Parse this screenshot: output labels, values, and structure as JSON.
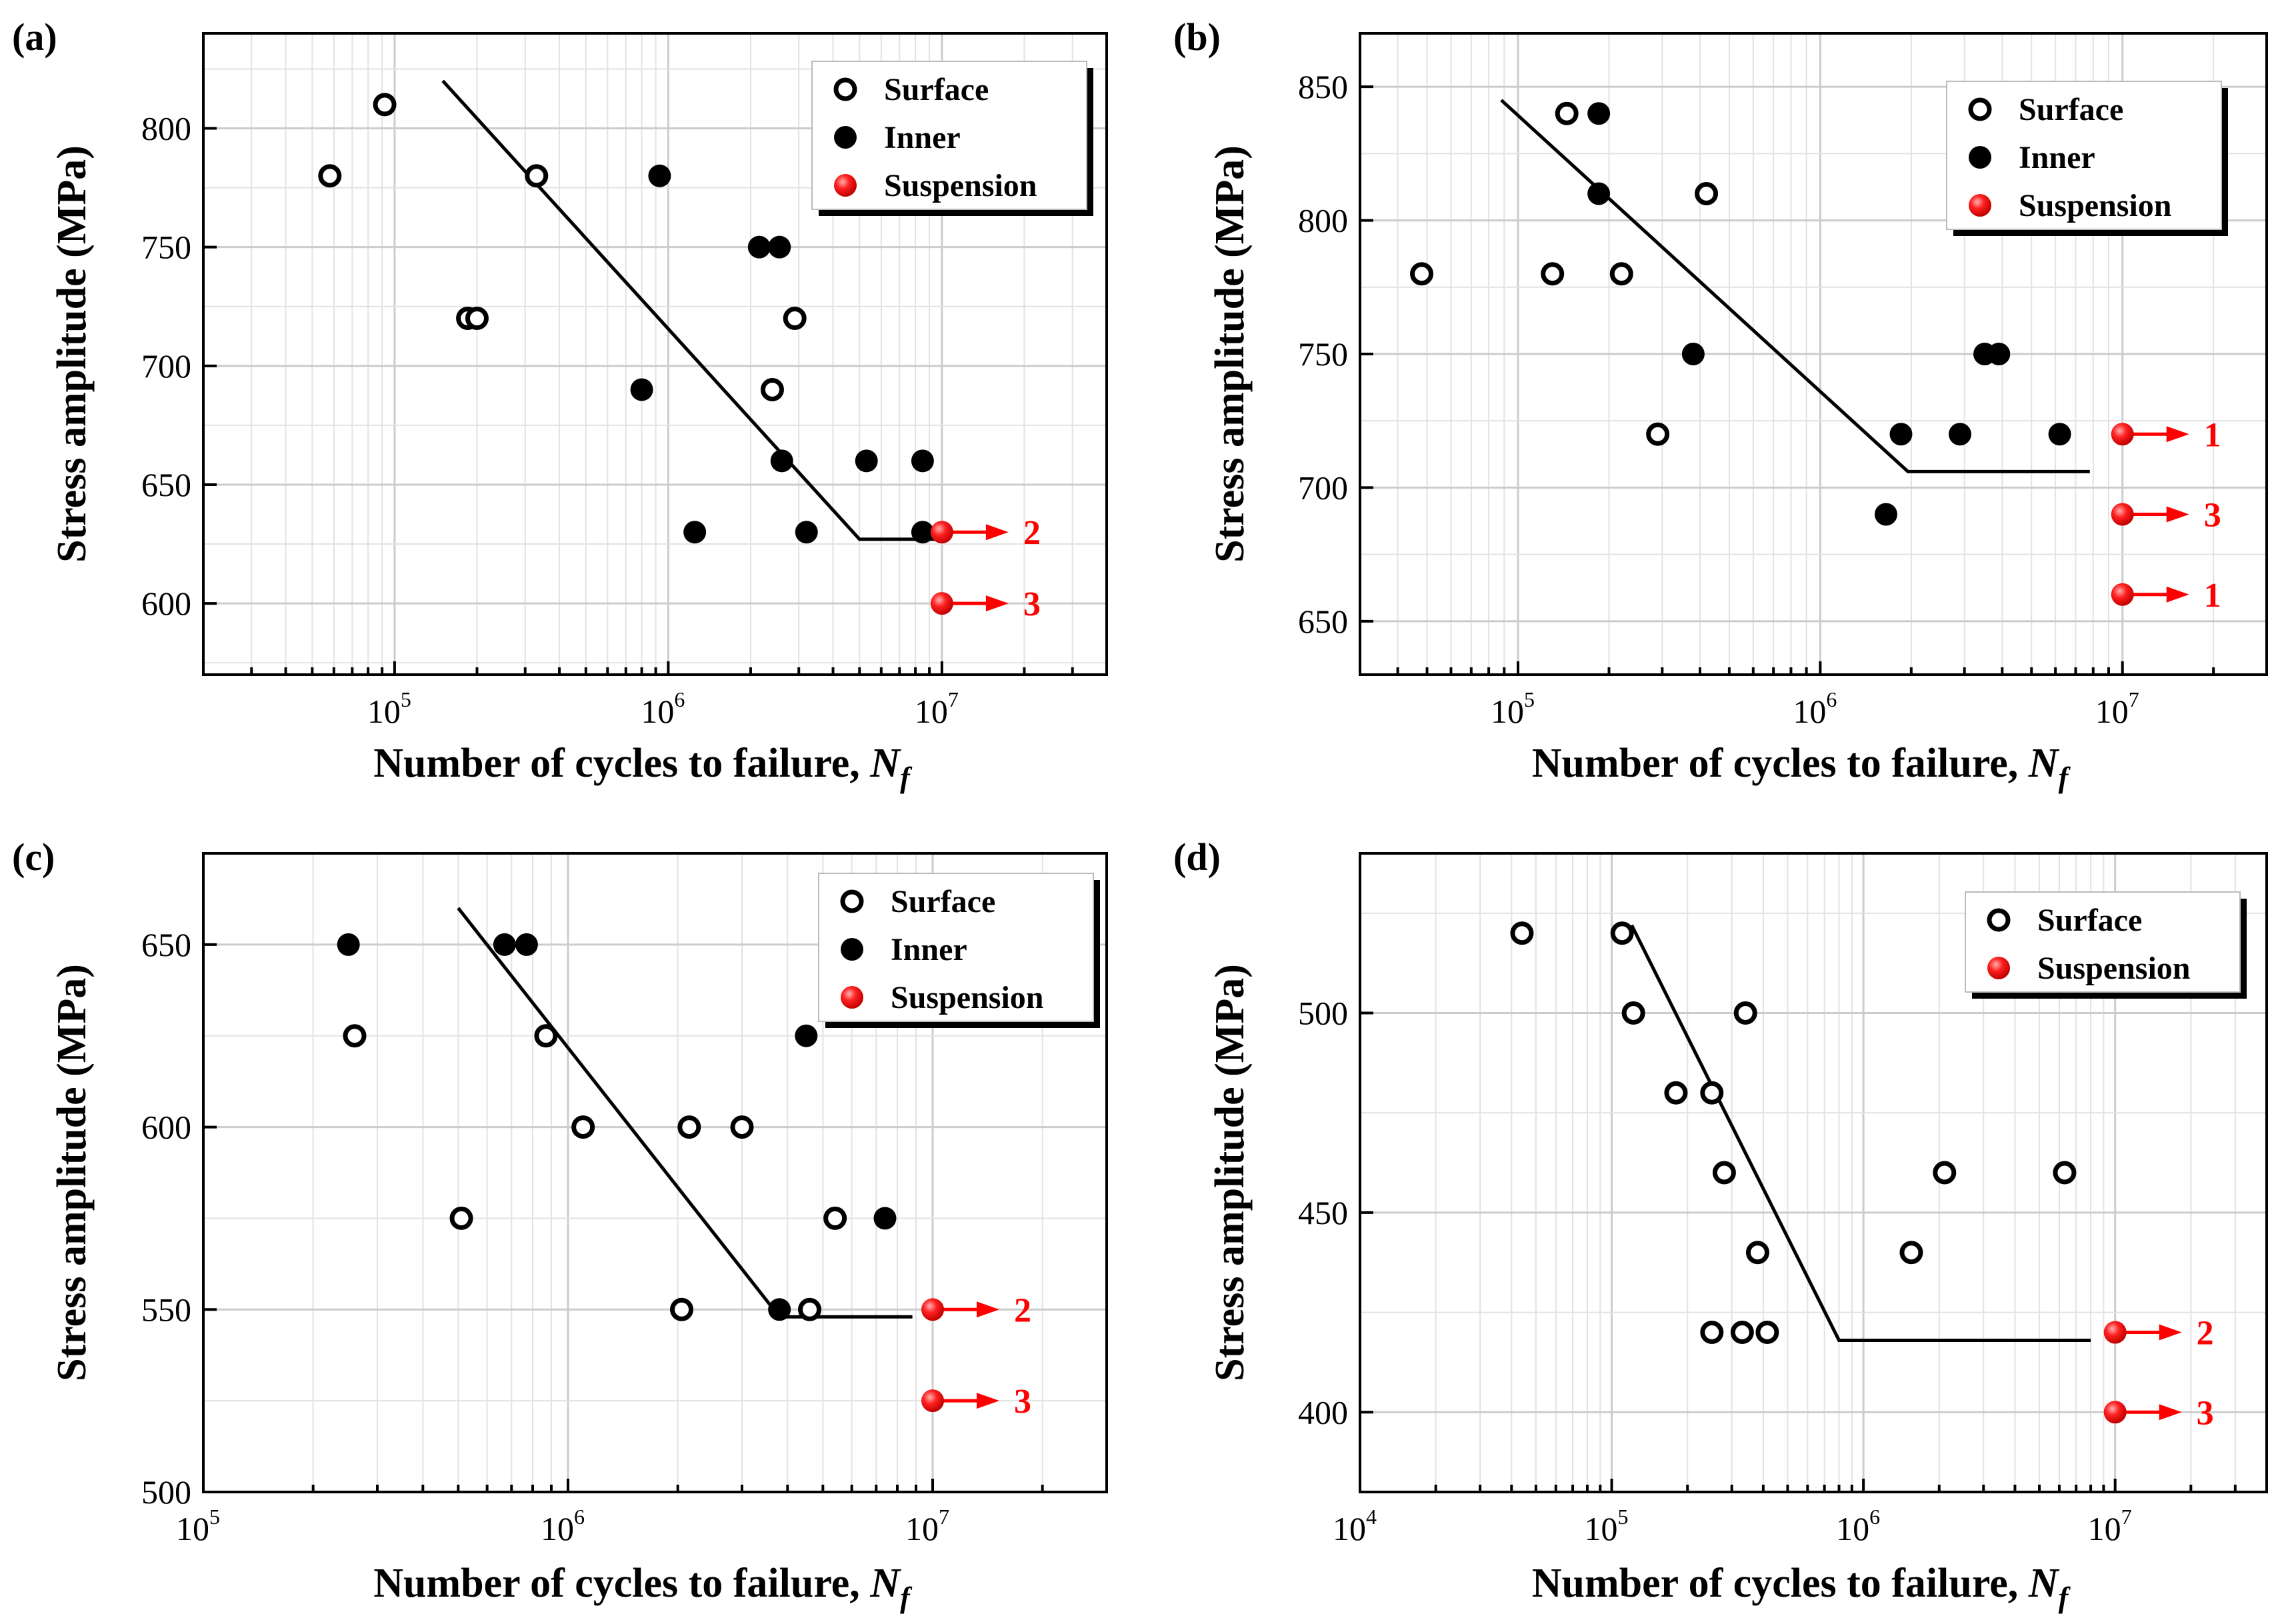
{
  "colors": {
    "axis": "#000000",
    "grid": "#cccccc",
    "minor_grid": "#e2e2e2",
    "suspension": "#ff0000",
    "legend_shadow": "#000000"
  },
  "chart_data": [
    {
      "type": "scatter",
      "label": "(a)",
      "xlabel": "Number of cycles to failure, ",
      "xlabel_italic": "N",
      "xlabel_sub": "f",
      "ylabel": "Stress amplitude (MPa)",
      "xscale": "log",
      "xlim": [
        20000,
        40000000
      ],
      "ylim": [
        570,
        840
      ],
      "xticks": [
        {
          "value": 100000,
          "base": "10",
          "exp": "5"
        },
        {
          "value": 1000000,
          "base": "10",
          "exp": "6"
        },
        {
          "value": 10000000,
          "base": "10",
          "exp": "7"
        }
      ],
      "yticks": [
        600,
        650,
        700,
        750,
        800
      ],
      "grid": true,
      "legend_position": "top-right",
      "legend": [
        {
          "label": "Surface",
          "marker": "open"
        },
        {
          "label": "Inner",
          "marker": "filled"
        },
        {
          "label": "Suspension",
          "marker": "red"
        }
      ],
      "series": [
        {
          "name": "Surface",
          "marker": "open",
          "points": [
            [
              58000,
              780
            ],
            [
              92000,
              810
            ],
            [
              185000,
              720
            ],
            [
              200000,
              720
            ],
            [
              330000,
              780
            ],
            [
              2400000,
              690
            ],
            [
              2900000,
              720
            ]
          ]
        },
        {
          "name": "Inner",
          "marker": "filled",
          "points": [
            [
              800000,
              690
            ],
            [
              930000,
              780
            ],
            [
              1250000,
              630
            ],
            [
              2150000,
              750
            ],
            [
              2550000,
              750
            ],
            [
              2600000,
              660
            ],
            [
              3200000,
              630
            ],
            [
              5300000,
              660
            ],
            [
              8500000,
              660
            ],
            [
              8500000,
              630
            ]
          ]
        },
        {
          "name": "Suspension",
          "marker": "red",
          "points": [
            [
              10000000,
              630
            ],
            [
              10000000,
              600
            ]
          ]
        }
      ],
      "fit_line": [
        [
          150000,
          820
        ],
        [
          5000000,
          627
        ],
        [
          10000000,
          627
        ]
      ],
      "annotations": [
        {
          "x": 10000000,
          "y": 630,
          "text": "2"
        },
        {
          "x": 10000000,
          "y": 600,
          "text": "3"
        }
      ]
    },
    {
      "type": "scatter",
      "label": "(b)",
      "xlabel": "Number of cycles to failure, ",
      "xlabel_italic": "N",
      "xlabel_sub": "f",
      "ylabel": "Stress amplitude (MPa)",
      "xscale": "log",
      "xlim": [
        30000,
        30000000
      ],
      "ylim": [
        630,
        870
      ],
      "xticks": [
        {
          "value": 100000,
          "base": "10",
          "exp": "5"
        },
        {
          "value": 1000000,
          "base": "10",
          "exp": "6"
        },
        {
          "value": 10000000,
          "base": "10",
          "exp": "7"
        }
      ],
      "yticks": [
        650,
        700,
        750,
        800,
        850
      ],
      "grid": true,
      "legend_position": "top-right",
      "legend": [
        {
          "label": "Surface",
          "marker": "open"
        },
        {
          "label": "Inner",
          "marker": "filled"
        },
        {
          "label": "Suspension",
          "marker": "red"
        }
      ],
      "series": [
        {
          "name": "Surface",
          "marker": "open",
          "points": [
            [
              48000,
              780
            ],
            [
              130000,
              780
            ],
            [
              145000,
              840
            ],
            [
              220000,
              780
            ],
            [
              290000,
              720
            ],
            [
              420000,
              810
            ]
          ]
        },
        {
          "name": "Inner",
          "marker": "filled",
          "points": [
            [
              185000,
              840
            ],
            [
              185000,
              810
            ],
            [
              380000,
              750
            ],
            [
              1650000,
              690
            ],
            [
              1850000,
              720
            ],
            [
              2900000,
              720
            ],
            [
              3500000,
              750
            ],
            [
              3900000,
              750
            ],
            [
              6200000,
              720
            ]
          ]
        },
        {
          "name": "Suspension",
          "marker": "red",
          "points": [
            [
              10000000,
              720
            ],
            [
              10000000,
              690
            ],
            [
              10000000,
              660
            ]
          ]
        }
      ],
      "fit_line": [
        [
          88000,
          845
        ],
        [
          1950000,
          706
        ],
        [
          7800000,
          706
        ]
      ],
      "annotations": [
        {
          "x": 10000000,
          "y": 720,
          "text": "1"
        },
        {
          "x": 10000000,
          "y": 690,
          "text": "3"
        },
        {
          "x": 10000000,
          "y": 660,
          "text": "1"
        }
      ]
    },
    {
      "type": "scatter",
      "label": "(c)",
      "xlabel": "Number of cycles to failure, ",
      "xlabel_italic": "N",
      "xlabel_sub": "f",
      "ylabel": "Stress amplitude (MPa)",
      "xscale": "log",
      "xlim": [
        100000,
        30000000
      ],
      "ylim": [
        500,
        675
      ],
      "xticks": [
        {
          "value": 100000,
          "base": "10",
          "exp": "5"
        },
        {
          "value": 1000000,
          "base": "10",
          "exp": "6"
        },
        {
          "value": 10000000,
          "base": "10",
          "exp": "7"
        }
      ],
      "yticks": [
        500,
        550,
        600,
        650
      ],
      "grid": true,
      "legend_position": "top-right",
      "legend": [
        {
          "label": "Surface",
          "marker": "open"
        },
        {
          "label": "Inner",
          "marker": "filled"
        },
        {
          "label": "Suspension",
          "marker": "red"
        }
      ],
      "series": [
        {
          "name": "Surface",
          "marker": "open",
          "points": [
            [
              260000,
              625
            ],
            [
              510000,
              575
            ],
            [
              870000,
              625
            ],
            [
              1100000,
              600
            ],
            [
              2050000,
              550
            ],
            [
              2150000,
              600
            ],
            [
              3000000,
              600
            ],
            [
              4600000,
              550
            ],
            [
              5400000,
              575
            ]
          ]
        },
        {
          "name": "Inner",
          "marker": "filled",
          "points": [
            [
              250000,
              650
            ],
            [
              670000,
              650
            ],
            [
              770000,
              650
            ],
            [
              3800000,
              550
            ],
            [
              4500000,
              625
            ],
            [
              7400000,
              575
            ]
          ]
        },
        {
          "name": "Suspension",
          "marker": "red",
          "points": [
            [
              10000000,
              550
            ],
            [
              10000000,
              525
            ]
          ]
        }
      ],
      "fit_line": [
        [
          500000,
          660
        ],
        [
          3800000,
          548
        ],
        [
          8800000,
          548
        ]
      ],
      "annotations": [
        {
          "x": 10000000,
          "y": 550,
          "text": "2"
        },
        {
          "x": 10000000,
          "y": 525,
          "text": "3"
        }
      ]
    },
    {
      "type": "scatter",
      "label": "(d)",
      "xlabel": "Number of cycles to failure, ",
      "xlabel_italic": "N",
      "xlabel_sub": "f",
      "ylabel": "Stress amplitude (MPa)",
      "xscale": "log",
      "xlim": [
        10000,
        40000000
      ],
      "ylim": [
        380,
        540
      ],
      "xticks": [
        {
          "value": 10000,
          "base": "10",
          "exp": "4"
        },
        {
          "value": 100000,
          "base": "10",
          "exp": "5"
        },
        {
          "value": 1000000,
          "base": "10",
          "exp": "6"
        },
        {
          "value": 10000000,
          "base": "10",
          "exp": "7"
        }
      ],
      "yticks": [
        400,
        450,
        500
      ],
      "grid": true,
      "legend_position": "top-right",
      "legend": [
        {
          "label": "Surface",
          "marker": "open"
        },
        {
          "label": "Suspension",
          "marker": "red"
        }
      ],
      "series": [
        {
          "name": "Surface",
          "marker": "open",
          "points": [
            [
              44000,
              520
            ],
            [
              110000,
              520
            ],
            [
              122000,
              500
            ],
            [
              180000,
              480
            ],
            [
              250000,
              480
            ],
            [
              250000,
              420
            ],
            [
              280000,
              460
            ],
            [
              330000,
              420
            ],
            [
              340000,
              500
            ],
            [
              380000,
              440
            ],
            [
              415000,
              420
            ],
            [
              1550000,
              440
            ],
            [
              2100000,
              460
            ],
            [
              6300000,
              460
            ]
          ]
        },
        {
          "name": "Suspension",
          "marker": "red",
          "points": [
            [
              10000000,
              420
            ],
            [
              10000000,
              400
            ]
          ]
        }
      ],
      "fit_line": [
        [
          120000,
          522
        ],
        [
          800000,
          418
        ],
        [
          8000000,
          418
        ]
      ],
      "annotations": [
        {
          "x": 10000000,
          "y": 420,
          "text": "2"
        },
        {
          "x": 10000000,
          "y": 400,
          "text": "3"
        }
      ]
    }
  ]
}
